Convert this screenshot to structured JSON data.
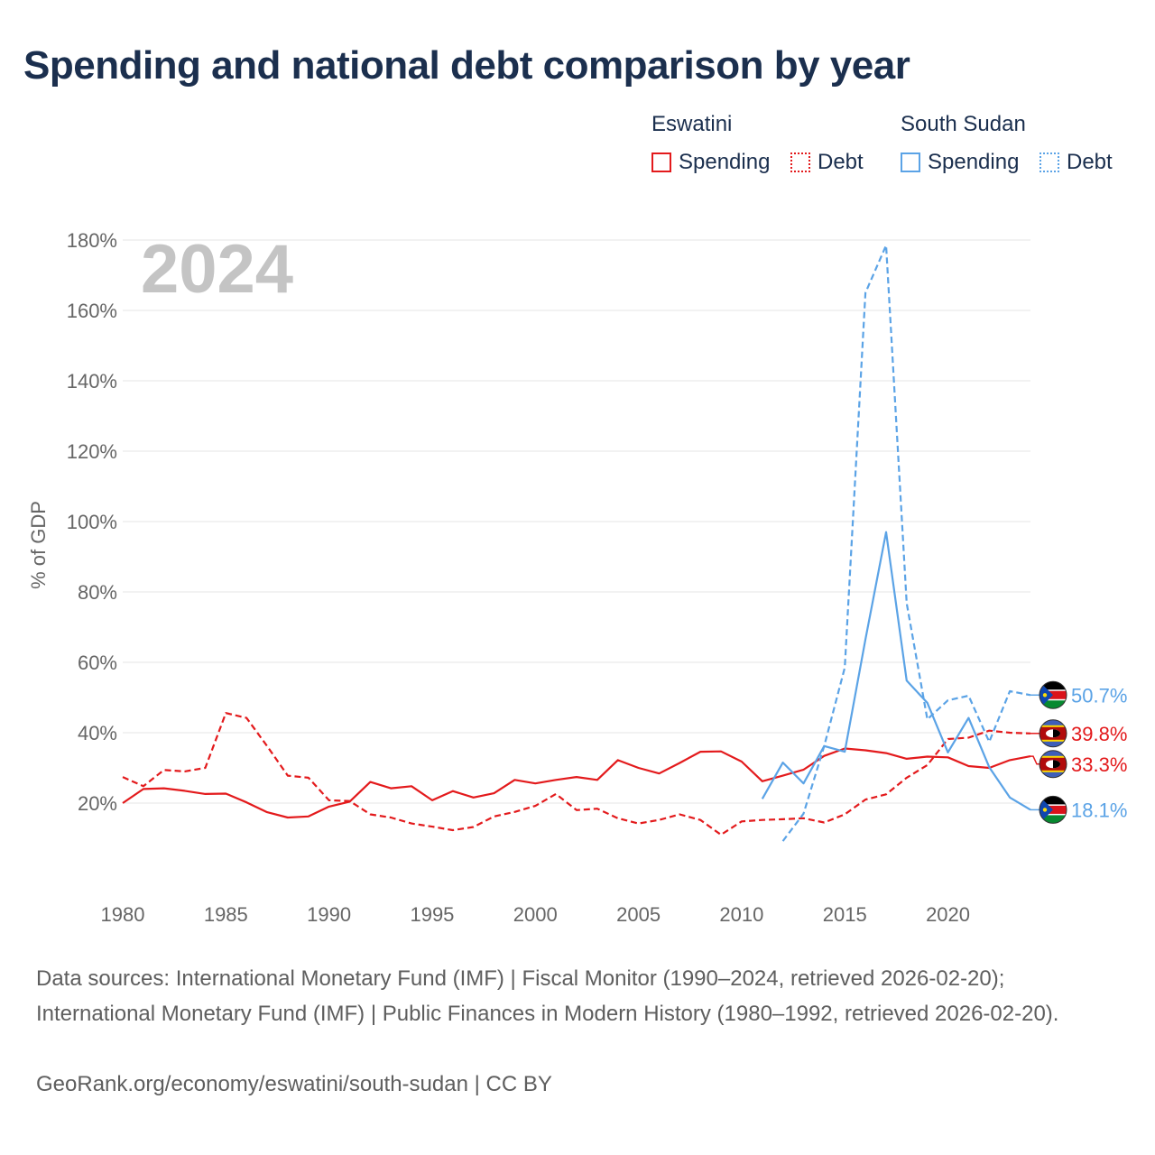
{
  "title": "Spending and national debt comparison by year",
  "legend": {
    "groups": [
      {
        "name": "Eswatini",
        "color": "#e31a1c",
        "items": [
          "Spending",
          "Debt"
        ]
      },
      {
        "name": "South Sudan",
        "color": "#5ba3e6",
        "items": [
          "Spending",
          "Debt"
        ]
      }
    ]
  },
  "footer": {
    "sources": "Data sources: International Monetary Fund (IMF) | Fiscal Monitor (1990–2024, retrieved 2026-02-20); International Monetary Fund (IMF) | Public Finances in Modern History (1980–1992, retrieved 2026-02-20).",
    "credit": "GeoRank.org/economy/eswatini/south-sudan | CC BY"
  },
  "chart_data": {
    "type": "line",
    "year_label": "2024",
    "ylabel": "% of GDP",
    "xlabel": "",
    "xlim": [
      1980,
      2024
    ],
    "ylim": [
      0,
      180
    ],
    "yticks": [
      20,
      40,
      60,
      80,
      100,
      120,
      140,
      160,
      180
    ],
    "ytick_labels": [
      "20%",
      "40%",
      "60%",
      "80%",
      "100%",
      "120%",
      "140%",
      "160%",
      "180%"
    ],
    "xticks": [
      1980,
      1985,
      1990,
      1995,
      2000,
      2005,
      2010,
      2015,
      2020
    ],
    "xtick_labels": [
      "1980",
      "1985",
      "1990",
      "1995",
      "2000",
      "2005",
      "2010",
      "2015",
      "2020"
    ],
    "grid": true,
    "series": [
      {
        "name": "Eswatini Spending",
        "country": "Eswatini",
        "measure": "Spending",
        "color": "#e31a1c",
        "dash": "solid",
        "x": [
          1980,
          1981,
          1982,
          1983,
          1984,
          1985,
          1986,
          1987,
          1988,
          1989,
          1990,
          1991,
          1992,
          1993,
          1994,
          1995,
          1996,
          1997,
          1998,
          1999,
          2000,
          2001,
          2002,
          2003,
          2004,
          2005,
          2006,
          2007,
          2008,
          2009,
          2010,
          2011,
          2012,
          2013,
          2014,
          2015,
          2016,
          2017,
          2018,
          2019,
          2020,
          2021,
          2022,
          2023,
          2024
        ],
        "values": [
          20,
          24,
          24.2,
          23.5,
          22.6,
          22.7,
          20.2,
          17.4,
          15.9,
          16.2,
          19,
          20.4,
          26,
          24.2,
          24.8,
          20.8,
          23.4,
          21.6,
          22.8,
          26.6,
          25.6,
          26.6,
          27.4,
          26.6,
          32.2,
          30,
          28.4,
          31.4,
          34.6,
          34.7,
          31.8,
          26.2,
          27.8,
          29.5,
          33.4,
          35.5,
          35,
          34.2,
          32.6,
          33.2,
          33,
          30.5,
          30,
          32.2,
          33.3
        ],
        "end_label": "33.3%"
      },
      {
        "name": "Eswatini Debt",
        "country": "Eswatini",
        "measure": "Debt",
        "color": "#e31a1c",
        "dash": "dashed",
        "x": [
          1980,
          1981,
          1982,
          1983,
          1984,
          1985,
          1986,
          1987,
          1988,
          1989,
          1990,
          1991,
          1992,
          1993,
          1994,
          1995,
          1996,
          1997,
          1998,
          1999,
          2000,
          2001,
          2002,
          2003,
          2004,
          2005,
          2006,
          2007,
          2008,
          2009,
          2010,
          2011,
          2012,
          2013,
          2014,
          2015,
          2016,
          2017,
          2018,
          2019,
          2020,
          2021,
          2022,
          2023,
          2024
        ],
        "values": [
          27.4,
          24.8,
          29.4,
          29,
          30,
          45.6,
          44.2,
          36.2,
          27.8,
          27.2,
          20.8,
          20.6,
          16.8,
          15.9,
          14.2,
          13.3,
          12.3,
          13.2,
          16.2,
          17.5,
          19.2,
          22.6,
          18,
          18.4,
          15.7,
          14.2,
          15.2,
          16.8,
          15.2,
          11,
          14.8,
          15.2,
          15.4,
          15.7,
          14.5,
          16.8,
          21,
          22.5,
          27.2,
          30.8,
          38.2,
          38.6,
          40.6,
          40,
          39.8
        ],
        "end_label": "39.8%"
      },
      {
        "name": "South Sudan Spending",
        "country": "South Sudan",
        "measure": "Spending",
        "color": "#5ba3e6",
        "dash": "solid",
        "x": [
          2011,
          2012,
          2013,
          2014,
          2015,
          2016,
          2017,
          2018,
          2019,
          2020,
          2021,
          2022,
          2023,
          2024
        ],
        "values": [
          21.2,
          31.5,
          25.6,
          36.2,
          34.6,
          66.5,
          97,
          54.8,
          48.5,
          34.4,
          44.2,
          30.2,
          21.6,
          18.1
        ],
        "end_label": "18.1%"
      },
      {
        "name": "South Sudan Debt",
        "country": "South Sudan",
        "measure": "Debt",
        "color": "#5ba3e6",
        "dash": "dashed",
        "x": [
          2012,
          2013,
          2014,
          2015,
          2016,
          2017,
          2018,
          2019,
          2020,
          2021,
          2022,
          2023,
          2024
        ],
        "values": [
          9.2,
          17,
          36.2,
          58.5,
          165,
          178.5,
          76.8,
          43.8,
          49.2,
          50.5,
          37.4,
          51.8,
          50.7
        ],
        "end_label": "50.7%"
      }
    ]
  }
}
